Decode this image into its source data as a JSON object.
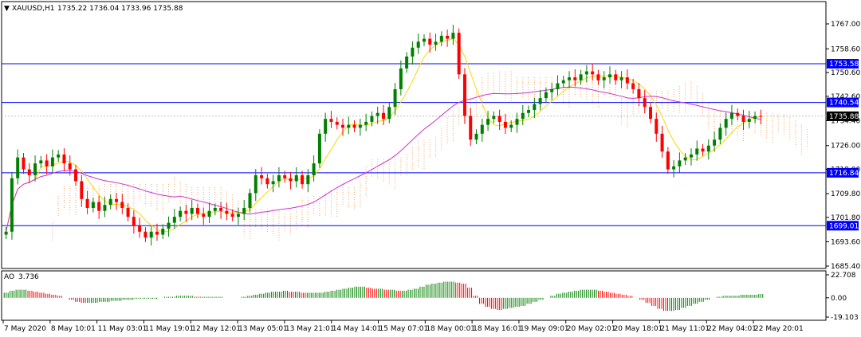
{
  "header": {
    "symbol": "XAUUSD,H1",
    "ohlc": "1735.22 1736.04 1733.96 1735.88"
  },
  "indicator": {
    "name": "AO",
    "value": "3.736",
    "axis_ticks": [
      "22.708",
      "0.00",
      "-19.103"
    ]
  },
  "colors": {
    "bull": "#008000",
    "bear": "#ff0000",
    "hline": "#0000ff",
    "ma_fast": "#ffd700",
    "ma_slow": "#cc33cc",
    "cloud": "#f4a460",
    "price_tag_bg": "#000000"
  },
  "chart_data": {
    "type": "candlestick",
    "ylim": [
      1685.4,
      1767.0
    ],
    "y_ticks": [
      "1767.00",
      "1758.60",
      "1750.60",
      "1742.60",
      "1734.40",
      "1726.00",
      "1718.00",
      "1709.80",
      "1701.80",
      "1693.60",
      "1685.40"
    ],
    "x_ticks": [
      "7 May 2020",
      "8 May 10:01",
      "11 May 03:01",
      "11 May 19:01",
      "12 May 12:01",
      "13 May 05:01",
      "13 May 21:01",
      "14 May 14:01",
      "15 May 07:01",
      "18 May 00:01",
      "18 May 16:01",
      "19 May 09:01",
      "20 May 02:01",
      "20 May 18:01",
      "21 May 11:01",
      "22 May 04:01",
      "22 May 20:01"
    ],
    "horizontal_lines": [
      {
        "label": "1753.58",
        "value": 1753.58
      },
      {
        "label": "1740.54",
        "value": 1740.54
      },
      {
        "label": "1716.84",
        "value": 1716.84
      },
      {
        "label": "1699.01",
        "value": 1699.01
      }
    ],
    "current_price": {
      "label": "1735.88",
      "value": 1735.88
    },
    "price_path": [
      1697,
      1715,
      1722,
      1718,
      1716,
      1720,
      1721,
      1719,
      1722,
      1723,
      1720,
      1718,
      1714,
      1708,
      1705,
      1707,
      1704,
      1706,
      1708,
      1707,
      1705,
      1702,
      1699,
      1697,
      1695,
      1697,
      1696,
      1698,
      1700,
      1702,
      1704,
      1703,
      1705,
      1703,
      1702,
      1704,
      1705,
      1704,
      1703,
      1702,
      1703,
      1705,
      1710,
      1716,
      1715,
      1713,
      1714,
      1716,
      1715,
      1714,
      1716,
      1713,
      1716,
      1720,
      1730,
      1735,
      1734,
      1733,
      1732,
      1733,
      1732,
      1733,
      1734,
      1736,
      1737,
      1735,
      1739,
      1745,
      1752,
      1756,
      1759,
      1761,
      1762,
      1760,
      1761,
      1763,
      1762,
      1764,
      1750,
      1736,
      1728,
      1730,
      1733,
      1735,
      1736,
      1734,
      1732,
      1733,
      1735,
      1737,
      1738,
      1740,
      1742,
      1744,
      1745,
      1747,
      1748,
      1749,
      1748,
      1750,
      1751,
      1750,
      1748,
      1749,
      1750,
      1748,
      1749,
      1747,
      1745,
      1742,
      1739,
      1735,
      1730,
      1724,
      1718,
      1719,
      1721,
      1722,
      1723,
      1725,
      1724,
      1726,
      1728,
      1732,
      1735,
      1737,
      1736,
      1734,
      1735,
      1736,
      1735.88
    ],
    "ao_values": [
      5,
      7,
      8,
      8,
      7,
      6,
      5,
      4,
      3,
      2,
      0,
      -2,
      -4,
      -5,
      -5,
      -5,
      -4,
      -4,
      -3,
      -3,
      -2,
      -2,
      -1,
      -1,
      -1,
      -1,
      0,
      1,
      1,
      2,
      2,
      2,
      1,
      1,
      1,
      1,
      1,
      0,
      0,
      0,
      1,
      2,
      3,
      4,
      5,
      6,
      6,
      7,
      6,
      6,
      5,
      5,
      5,
      5,
      6,
      7,
      8,
      9,
      10,
      11,
      11,
      10,
      9,
      9,
      8,
      8,
      7,
      7,
      8,
      9,
      11,
      13,
      14,
      15,
      16,
      16,
      15,
      14,
      10,
      2,
      -6,
      -9,
      -11,
      -12,
      -11,
      -10,
      -9,
      -8,
      -6,
      -4,
      -2,
      0,
      2,
      4,
      5,
      6,
      7,
      8,
      8,
      8,
      7,
      6,
      5,
      4,
      3,
      2,
      0,
      -2,
      -5,
      -8,
      -11,
      -13,
      -13,
      -12,
      -10,
      -8,
      -6,
      -4,
      -2,
      0,
      1,
      2,
      2,
      2,
      3,
      3,
      3,
      3.7
    ]
  }
}
